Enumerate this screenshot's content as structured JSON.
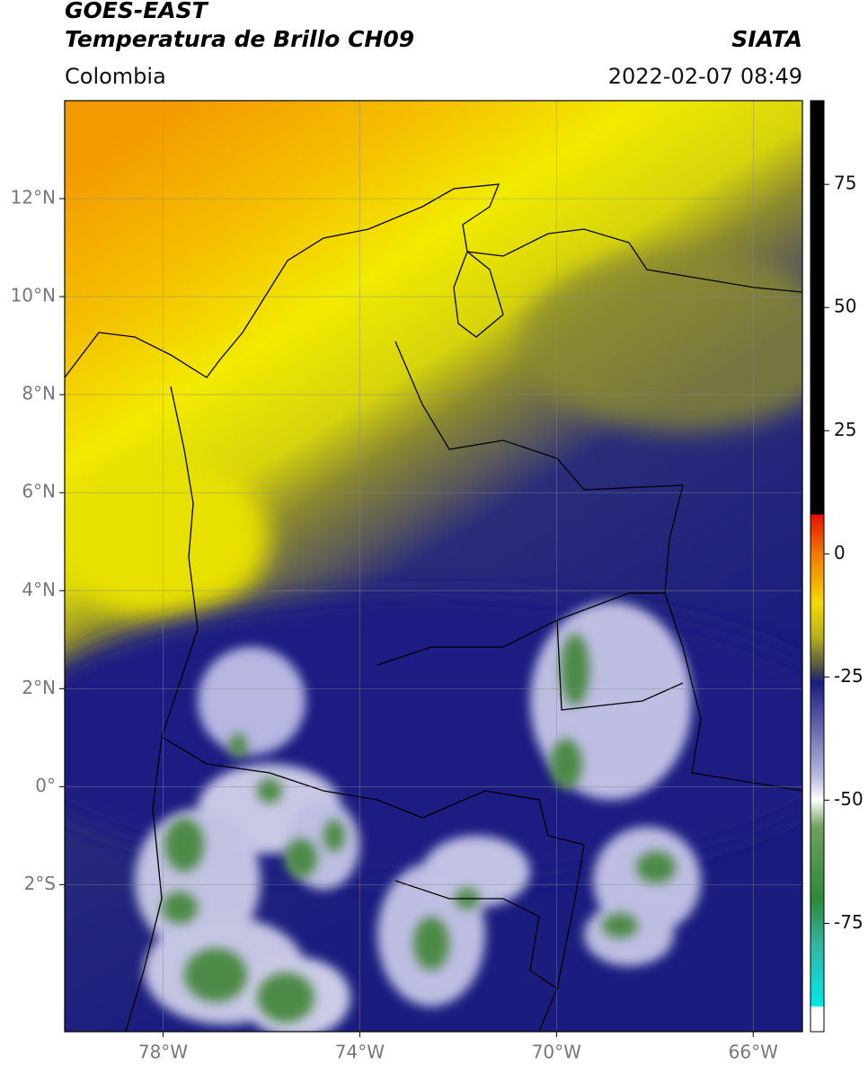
{
  "header": {
    "title": "GOES-EAST",
    "subtitle": "Temperatura de Brillo CH09",
    "source": "SIATA",
    "region": "Colombia",
    "datetime": "2022-02-07 08:49"
  },
  "map": {
    "xlim": [
      -80,
      -65
    ],
    "ylim": [
      -5,
      14
    ],
    "xticks": [
      {
        "value": -78,
        "label": "78°W"
      },
      {
        "value": -74,
        "label": "74°W"
      },
      {
        "value": -70,
        "label": "70°W"
      },
      {
        "value": -66,
        "label": "66°W"
      }
    ],
    "yticks": [
      {
        "value": 12,
        "label": "12°N"
      },
      {
        "value": 10,
        "label": "10°N"
      },
      {
        "value": 8,
        "label": "8°N"
      },
      {
        "value": 6,
        "label": "6°N"
      },
      {
        "value": 4,
        "label": "4°N"
      },
      {
        "value": 2,
        "label": "2°N"
      },
      {
        "value": 0,
        "label": "0°"
      },
      {
        "value": -2,
        "label": "2°S"
      }
    ],
    "grid": true
  },
  "colorbar": {
    "lim": [
      -97,
      92
    ],
    "ticks": [
      75,
      50,
      25,
      0,
      -25,
      -50,
      -75
    ]
  }
}
